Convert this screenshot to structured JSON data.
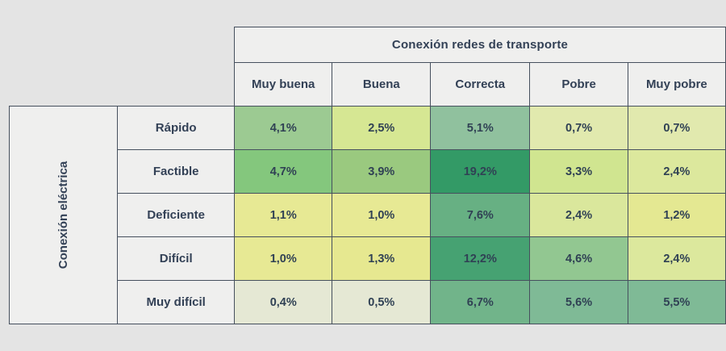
{
  "page": {
    "background": "#e4e4e4",
    "border_color": "#46505e",
    "header_bg": "#efefee",
    "text_color": "#334156"
  },
  "chart_data": {
    "type": "heatmap",
    "title": "",
    "col_group_label": "Conexión redes de transporte",
    "row_group_label": "Conexión eléctrica",
    "columns": [
      "Muy buena",
      "Buena",
      "Correcta",
      "Pobre",
      "Muy pobre"
    ],
    "rows": [
      "Rápido",
      "Factible",
      "Deficiente",
      "Difícil",
      "Muy difícil"
    ],
    "values": [
      [
        4.1,
        2.5,
        5.1,
        0.7,
        0.7
      ],
      [
        4.7,
        3.9,
        19.2,
        3.3,
        2.4
      ],
      [
        1.1,
        1.0,
        7.6,
        2.4,
        1.2
      ],
      [
        1.0,
        1.3,
        12.2,
        4.6,
        2.4
      ],
      [
        0.4,
        0.5,
        6.7,
        5.6,
        5.5
      ]
    ],
    "value_labels": [
      [
        "4,1%",
        "2,5%",
        "5,1%",
        "0,7%",
        "0,7%"
      ],
      [
        "4,7%",
        "3,9%",
        "19,2%",
        "3,3%",
        "2,4%"
      ],
      [
        "1,1%",
        "1,0%",
        "7,6%",
        "2,4%",
        "1,2%"
      ],
      [
        "1,0%",
        "1,3%",
        "12,2%",
        "4,6%",
        "2,4%"
      ],
      [
        "0,4%",
        "0,5%",
        "6,7%",
        "5,6%",
        "5,5%"
      ]
    ],
    "cell_colors": [
      [
        "#9cca92",
        "#d6e793",
        "#90c19e",
        "#e1e9ae",
        "#e1e9ae"
      ],
      [
        "#84c77d",
        "#9ac97f",
        "#339a66",
        "#d0e590",
        "#dce89d"
      ],
      [
        "#e7e994",
        "#e7e994",
        "#67b083",
        "#dae79c",
        "#e4e892"
      ],
      [
        "#e7e994",
        "#e6e890",
        "#46a272",
        "#92c791",
        "#dce89d"
      ],
      [
        "#e5e8d4",
        "#e5e8d4",
        "#71b48a",
        "#7fba96",
        "#7fba96"
      ]
    ],
    "value_format": "percent, comma decimal separator",
    "legend": "none",
    "grid": "on"
  }
}
